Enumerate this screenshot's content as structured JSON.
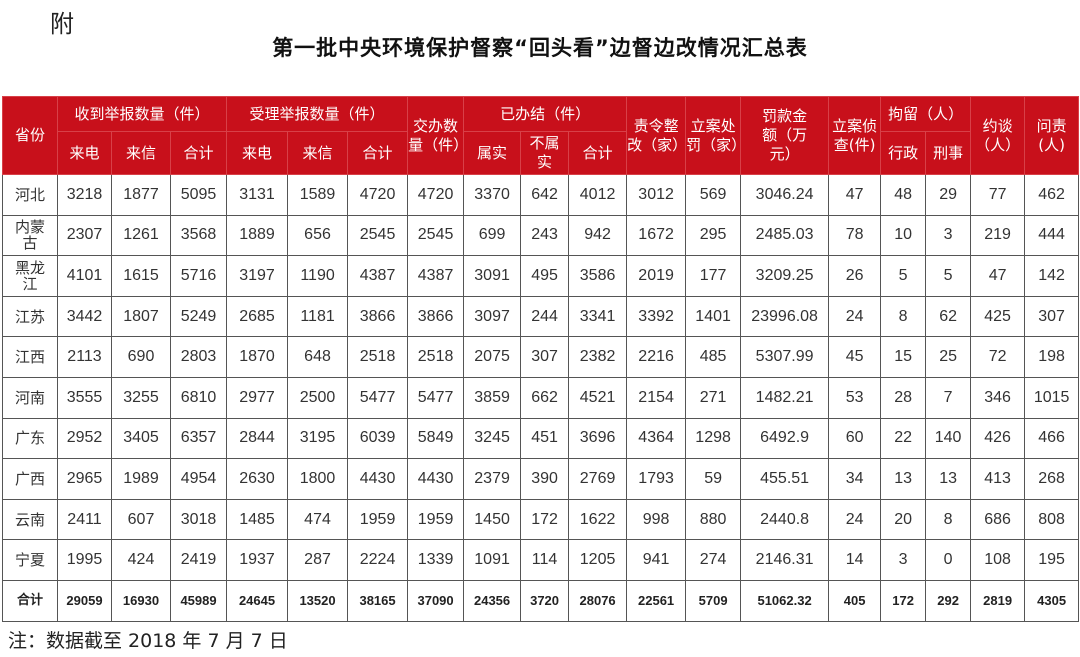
{
  "annex_label": "附",
  "title": "第一批中央环境保护督察“回头看”边督边改情况汇总表",
  "header_color": "#c8101b",
  "headers": {
    "province": "省份",
    "received": "收到举报数量（件）",
    "accepted": "受理举报数量（件）",
    "assigned": "交办数量（件）",
    "closed": "已办结（件）",
    "rectify": "责令整改（家）",
    "penalty_cases": "立案处罚（家）",
    "fine": "罚款金额（万元）",
    "investigation": "立案侦查(件)",
    "detention": "拘留（人）",
    "interview": "约谈（人）",
    "accountability": "问责(人)",
    "phone": "来电",
    "letter": "来信",
    "subtotal": "合计",
    "true": "属实",
    "untrue": "不属实",
    "administrative": "行政",
    "criminal": "刑事"
  },
  "rows": [
    [
      "河北",
      "3218",
      "1877",
      "5095",
      "3131",
      "1589",
      "4720",
      "4720",
      "3370",
      "642",
      "4012",
      "3012",
      "569",
      "3046.24",
      "47",
      "48",
      "29",
      "77",
      "462"
    ],
    [
      "内蒙古",
      "2307",
      "1261",
      "3568",
      "1889",
      "656",
      "2545",
      "2545",
      "699",
      "243",
      "942",
      "1672",
      "295",
      "2485.03",
      "78",
      "10",
      "3",
      "219",
      "444"
    ],
    [
      "黑龙江",
      "4101",
      "1615",
      "5716",
      "3197",
      "1190",
      "4387",
      "4387",
      "3091",
      "495",
      "3586",
      "2019",
      "177",
      "3209.25",
      "26",
      "5",
      "5",
      "47",
      "142"
    ],
    [
      "江苏",
      "3442",
      "1807",
      "5249",
      "2685",
      "1181",
      "3866",
      "3866",
      "3097",
      "244",
      "3341",
      "3392",
      "1401",
      "23996.08",
      "24",
      "8",
      "62",
      "425",
      "307"
    ],
    [
      "江西",
      "2113",
      "690",
      "2803",
      "1870",
      "648",
      "2518",
      "2518",
      "2075",
      "307",
      "2382",
      "2216",
      "485",
      "5307.99",
      "45",
      "15",
      "25",
      "72",
      "198"
    ],
    [
      "河南",
      "3555",
      "3255",
      "6810",
      "2977",
      "2500",
      "5477",
      "5477",
      "3859",
      "662",
      "4521",
      "2154",
      "271",
      "1482.21",
      "53",
      "28",
      "7",
      "346",
      "1015"
    ],
    [
      "广东",
      "2952",
      "3405",
      "6357",
      "2844",
      "3195",
      "6039",
      "5849",
      "3245",
      "451",
      "3696",
      "4364",
      "1298",
      "6492.9",
      "60",
      "22",
      "140",
      "426",
      "466"
    ],
    [
      "广西",
      "2965",
      "1989",
      "4954",
      "2630",
      "1800",
      "4430",
      "4430",
      "2379",
      "390",
      "2769",
      "1793",
      "59",
      "455.51",
      "34",
      "13",
      "13",
      "413",
      "268"
    ],
    [
      "云南",
      "2411",
      "607",
      "3018",
      "1485",
      "474",
      "1959",
      "1959",
      "1450",
      "172",
      "1622",
      "998",
      "880",
      "2440.8",
      "24",
      "20",
      "8",
      "686",
      "808"
    ],
    [
      "宁夏",
      "1995",
      "424",
      "2419",
      "1937",
      "287",
      "2224",
      "1339",
      "1091",
      "114",
      "1205",
      "941",
      "274",
      "2146.31",
      "14",
      "3",
      "0",
      "108",
      "195"
    ]
  ],
  "total_row": [
    "合计",
    "29059",
    "16930",
    "45989",
    "24645",
    "13520",
    "38165",
    "37090",
    "24356",
    "3720",
    "28076",
    "22561",
    "5709",
    "51062.32",
    "405",
    "172",
    "292",
    "2819",
    "4305"
  ],
  "note": "注：数据截至 2018 年 7 月 7 日"
}
